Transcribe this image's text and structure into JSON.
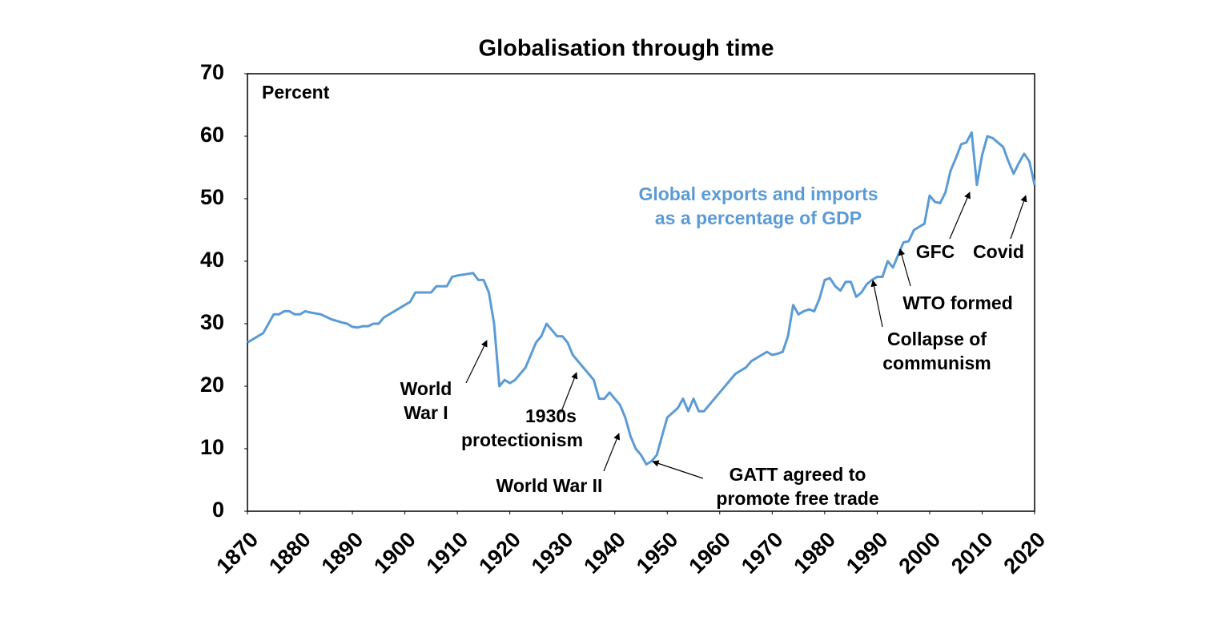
{
  "chart_data": {
    "type": "line",
    "title": "Globalisation through time",
    "ylabel": "Percent",
    "x": [
      1870,
      1873,
      1875,
      1876,
      1877,
      1878,
      1879,
      1880,
      1881,
      1882,
      1884,
      1886,
      1888,
      1889,
      1890,
      1891,
      1892,
      1893,
      1894,
      1895,
      1896,
      1898,
      1900,
      1901,
      1902,
      1903,
      1904,
      1905,
      1906,
      1907,
      1908,
      1909,
      1910,
      1913,
      1914,
      1915,
      1916,
      1917,
      1918,
      1919,
      1920,
      1921,
      1923,
      1925,
      1926,
      1927,
      1928,
      1929,
      1930,
      1931,
      1932,
      1934,
      1936,
      1937,
      1938,
      1939,
      1940,
      1941,
      1942,
      1943,
      1944,
      1945,
      1946,
      1947,
      1948,
      1949,
      1950,
      1952,
      1953,
      1954,
      1955,
      1956,
      1957,
      1960,
      1963,
      1965,
      1966,
      1968,
      1969,
      1970,
      1971,
      1972,
      1973,
      1974,
      1975,
      1976,
      1977,
      1978,
      1979,
      1980,
      1981,
      1982,
      1983,
      1984,
      1985,
      1986,
      1987,
      1988,
      1989,
      1990,
      1991,
      1992,
      1993,
      1994,
      1995,
      1996,
      1997,
      1998,
      1999,
      2000,
      2001,
      2002,
      2003,
      2004,
      2005,
      2006,
      2007,
      2008,
      2009,
      2010,
      2011,
      2012,
      2013,
      2014,
      2015,
      2016,
      2017,
      2018,
      2019,
      2020
    ],
    "series": [
      {
        "name": [
          "Global exports and imports",
          "as a percentage of GDP"
        ],
        "color": "#5b9bd5",
        "values": [
          27,
          28.5,
          31.5,
          31.5,
          32,
          32,
          31.5,
          31.5,
          32,
          31.8,
          31.5,
          30.7,
          30.2,
          30,
          29.5,
          29.4,
          29.6,
          29.6,
          30,
          30,
          31,
          32,
          33,
          33.5,
          35,
          35,
          35,
          35,
          36,
          36,
          36,
          37.5,
          37.7,
          38.1,
          37,
          37,
          35,
          30,
          20,
          21,
          20.5,
          21,
          23,
          27,
          28,
          30,
          29,
          28,
          28,
          27,
          25,
          23,
          21,
          18,
          18,
          19,
          18,
          17,
          15,
          12,
          10,
          9,
          7.5,
          8,
          9,
          12,
          15,
          16.5,
          18,
          16,
          18,
          16,
          16,
          19,
          22,
          23,
          24,
          25,
          25.5,
          25,
          25.2,
          25.5,
          28,
          33,
          31.5,
          32,
          32.3,
          32,
          34,
          37,
          37.3,
          36,
          35.3,
          36.7,
          36.7,
          34.3,
          35,
          36.3,
          37,
          37.5,
          37.5,
          40,
          39,
          41,
          43,
          43.2,
          45,
          45.5,
          46,
          50.5,
          49.5,
          49.3,
          51,
          54.5,
          56.5,
          58.7,
          59,
          60.6,
          52.2,
          57,
          60,
          59.7,
          59,
          58.3,
          56,
          54,
          55.7,
          57.2,
          56,
          52.2
        ]
      }
    ],
    "xlim": [
      1870,
      2020
    ],
    "xticks": [
      1870,
      1880,
      1890,
      1900,
      1910,
      1920,
      1930,
      1940,
      1950,
      1960,
      1970,
      1980,
      1990,
      2000,
      2010,
      2020
    ],
    "ylim": [
      0,
      70
    ],
    "yticks": [
      0,
      10,
      20,
      30,
      40,
      50,
      60,
      70
    ],
    "annotations": [
      {
        "text": [
          "World",
          "War I"
        ]
      },
      {
        "text": [
          "1930s",
          "protectionism"
        ]
      },
      {
        "text": [
          "World War II"
        ]
      },
      {
        "text": [
          "GATT agreed to",
          "promote free trade"
        ]
      },
      {
        "text": [
          "Collapse of",
          "communism"
        ]
      },
      {
        "text": [
          "WTO formed"
        ]
      },
      {
        "text": [
          "GFC"
        ]
      },
      {
        "text": [
          "Covid"
        ]
      }
    ]
  }
}
